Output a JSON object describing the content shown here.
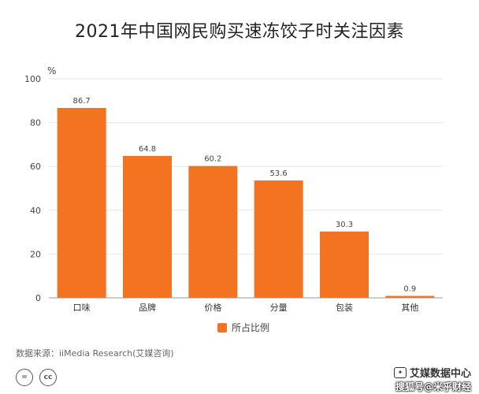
{
  "chart_data": {
    "type": "bar",
    "title": "2021年中国网民购买速冻饺子时关注因素",
    "unit_label": "%",
    "categories": [
      "口味",
      "品牌",
      "价格",
      "分量",
      "包装",
      "其他"
    ],
    "series": [
      {
        "name": "所占比例",
        "values": [
          86.7,
          64.8,
          60.2,
          53.6,
          30.3,
          0.9
        ]
      }
    ],
    "data_labels": [
      "86.7",
      "64.8",
      "60.2",
      "53.6",
      "30.3",
      "0.9"
    ],
    "ylim": [
      0,
      100
    ],
    "yticks": [
      0,
      20,
      40,
      60,
      80,
      100
    ],
    "grid": true,
    "legend_position": "bottom",
    "bar_color": "#F47320"
  },
  "source_text": "数据来源：iiMedia Research(艾媒咨询)",
  "footer": {
    "brand": "艾媒数据中心",
    "watermark": "搜狐号@米乎财经",
    "license_icons": [
      "creative-commons-equal",
      "creative-commons-cc"
    ]
  }
}
